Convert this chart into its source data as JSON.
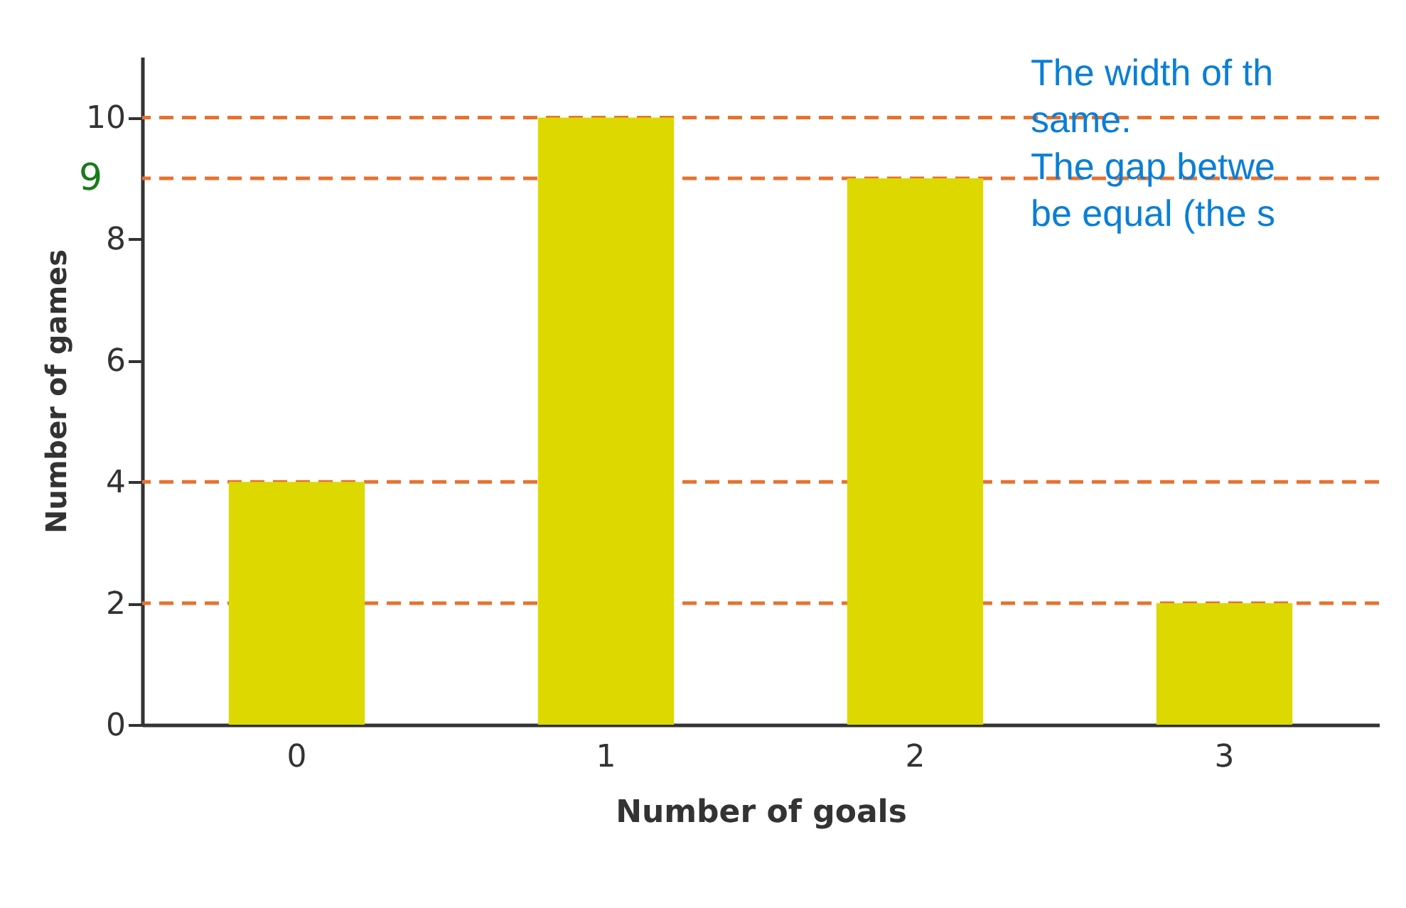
{
  "chart_data": {
    "type": "bar",
    "xlabel": "Number of goals",
    "ylabel": "Number of games",
    "categories": [
      "0",
      "1",
      "2",
      "3"
    ],
    "values": [
      4,
      10,
      9,
      2
    ],
    "color": "#dcd800",
    "ylim": [
      0,
      11
    ],
    "yticks": [
      0,
      2,
      4,
      6,
      8,
      10
    ],
    "grid": false,
    "ref_lines": [
      {
        "axis": "y",
        "value": 10,
        "label": null,
        "color": "#e8712e",
        "line_style": "dashed"
      },
      {
        "axis": "y",
        "value": 9,
        "label": "9",
        "color": "#e8712e",
        "line_style": "dashed"
      },
      {
        "axis": "y",
        "value": 4,
        "label": null,
        "color": "#e8712e",
        "line_style": "dashed"
      },
      {
        "axis": "y",
        "value": 2,
        "label": null,
        "color": "#e8712e",
        "line_style": "dashed"
      }
    ],
    "annotations": [
      "The width of th",
      "same.",
      "The gap betwe",
      "be equal (the s"
    ]
  }
}
